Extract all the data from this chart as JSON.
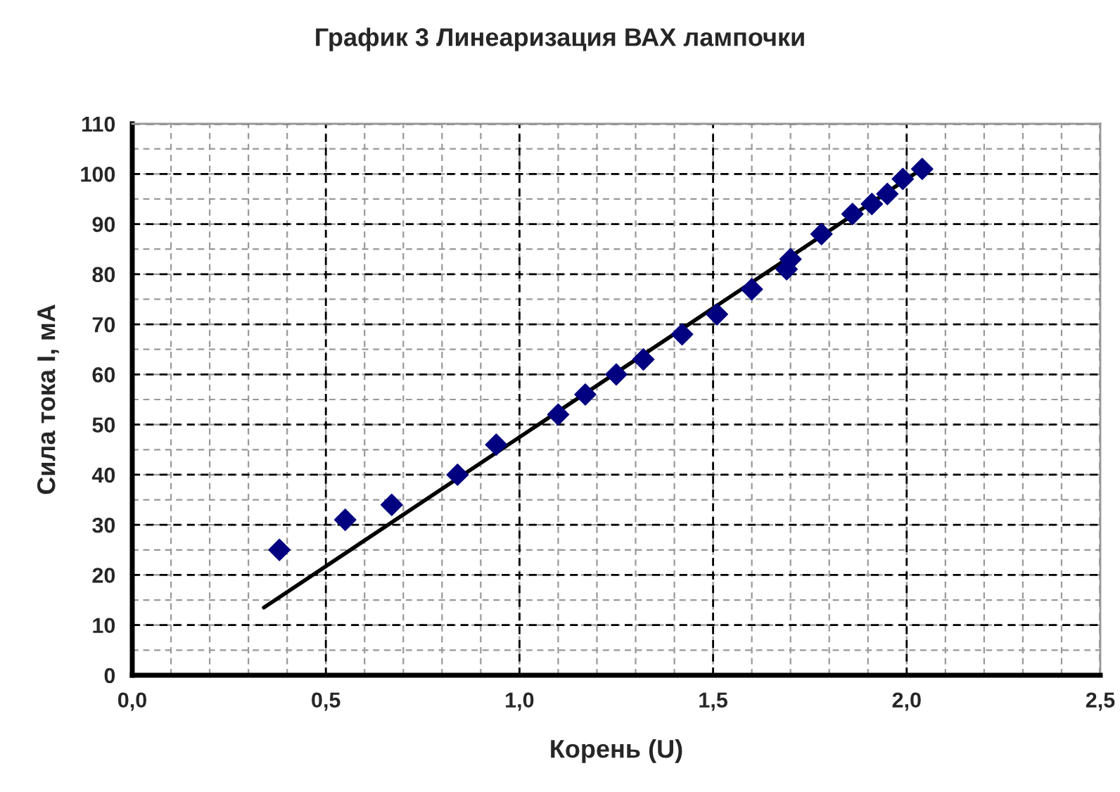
{
  "chart_data": {
    "type": "scatter",
    "title": "График 3 Линеаризация ВАХ лампочки",
    "xlabel": "Корень (U)",
    "ylabel": "Сила тока I, мА",
    "series": [
      {
        "color": "#000080",
        "marker": "diamond",
        "x": [
          0.38,
          0.55,
          0.67,
          0.84,
          0.94,
          1.1,
          1.17,
          1.25,
          1.32,
          1.42,
          1.51,
          1.6,
          1.69,
          1.7,
          1.78,
          1.86,
          1.91,
          1.95,
          1.99,
          2.04
        ],
        "values": [
          25,
          31,
          34,
          40,
          46,
          52,
          56,
          60,
          63,
          68,
          72,
          77,
          81,
          83,
          88,
          92,
          94,
          96,
          99,
          101
        ]
      },
      {
        "type": "line",
        "color": "#000000",
        "line_style": "solid",
        "marker": "none",
        "x": [
          0.34,
          2.02
        ],
        "values": [
          13.5,
          100
        ]
      }
    ],
    "xlim": [
      0,
      2.5
    ],
    "ylim": [
      0,
      110
    ],
    "xticks": [
      {
        "value": 0,
        "label": "0,0"
      },
      {
        "value": 0.5,
        "label": "0,5"
      },
      {
        "value": 1.0,
        "label": "1,0"
      },
      {
        "value": 1.5,
        "label": "1,5"
      },
      {
        "value": 2.0,
        "label": "2,0"
      },
      {
        "value": 2.5,
        "label": "2,5"
      }
    ],
    "yticks": [
      0,
      10,
      20,
      30,
      40,
      50,
      60,
      70,
      80,
      90,
      100,
      110
    ],
    "grid": true
  }
}
